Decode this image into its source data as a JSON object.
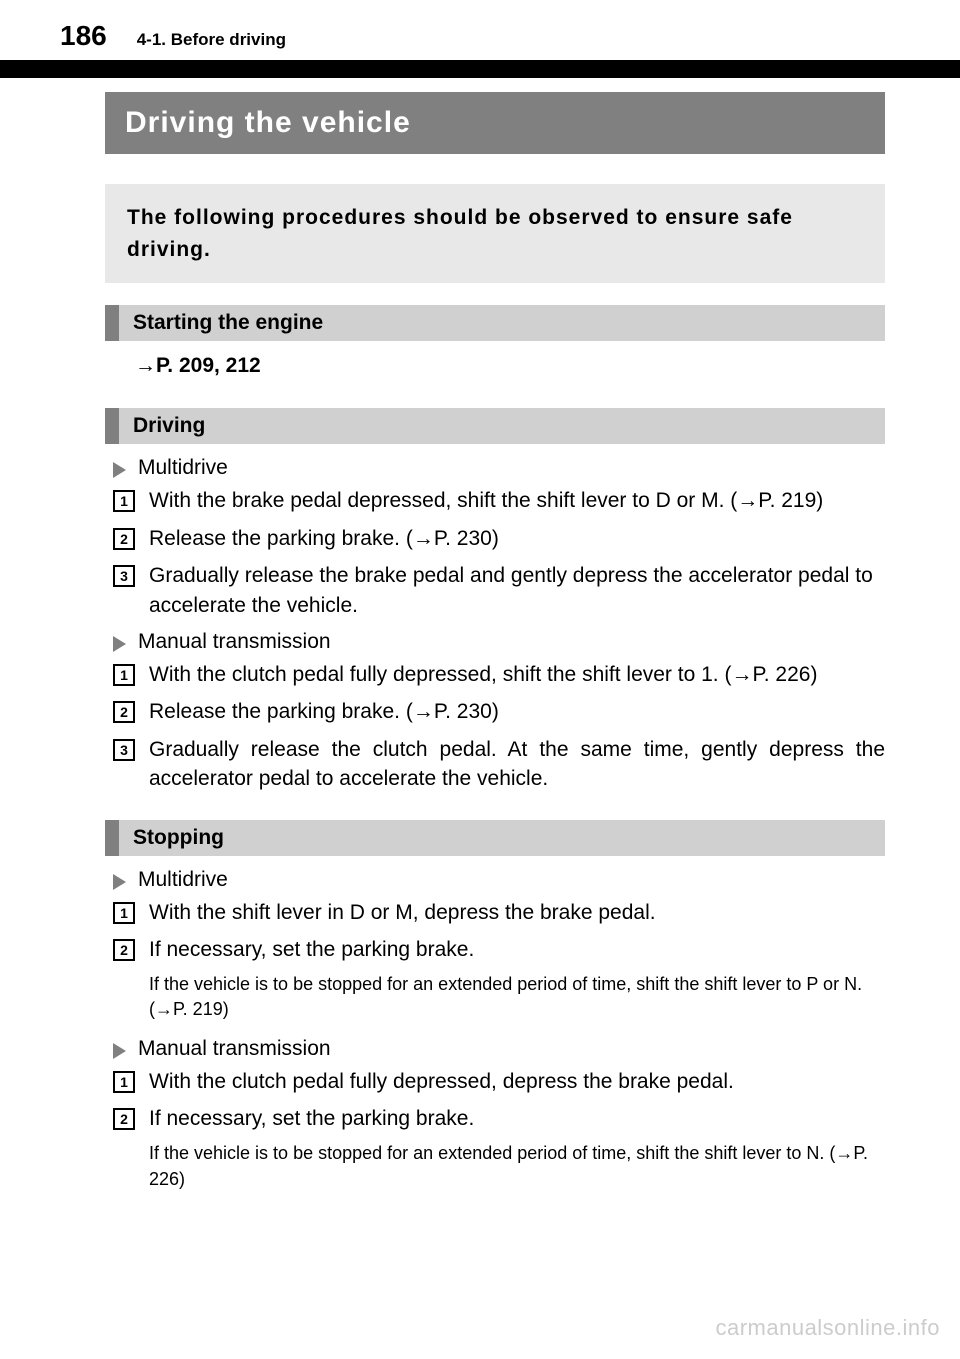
{
  "page_number": "186",
  "section_label": "4-1. Before driving",
  "title": "Driving the vehicle",
  "intro": "The following procedures should be observed to ensure safe driving.",
  "starting": {
    "heading": "Starting the engine",
    "ref": "→P. 209, 212"
  },
  "driving": {
    "heading": "Driving",
    "multidrive": {
      "label": "Multidrive",
      "steps": [
        "With the brake pedal depressed, shift the shift lever to D or M. (→P. 219)",
        "Release the parking brake. (→P. 230)",
        "Gradually release the brake pedal and gently depress the accelerator pedal to accelerate the vehicle."
      ]
    },
    "manual": {
      "label": "Manual transmission",
      "steps": [
        "With the clutch pedal fully depressed, shift the shift lever to 1. (→P. 226)",
        "Release the parking brake. (→P. 230)",
        "Gradually release the clutch pedal. At the same time, gently depress the accelerator pedal to accelerate the vehicle."
      ]
    }
  },
  "stopping": {
    "heading": "Stopping",
    "multidrive": {
      "label": "Multidrive",
      "steps": [
        "With the shift lever in D or M, depress the brake pedal.",
        "If necessary, set the parking brake."
      ],
      "note": "If the vehicle is to be stopped for an extended period of time, shift the shift lever to P or N. (→P. 219)"
    },
    "manual": {
      "label": "Manual transmission",
      "steps": [
        "With the clutch pedal fully depressed, depress the brake pedal.",
        "If necessary, set the parking brake."
      ],
      "note": "If the vehicle is to be stopped for an extended period of time, shift the shift lever to N. (→P. 226)"
    }
  },
  "watermark": "carmanualsonline.info",
  "colors": {
    "black": "#000000",
    "title_bg": "#808080",
    "intro_bg": "#e8e8e8",
    "heading_bg": "#d0d0d0",
    "heading_tab": "#808080",
    "triangle": "#808080",
    "watermark": "#cccccc"
  }
}
